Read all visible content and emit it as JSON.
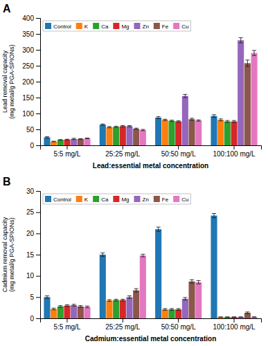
{
  "chart_data": [
    {
      "type": "bar",
      "title": "A",
      "xlabel": "Lead:essential metal concentration",
      "ylabel": "Lead removal capacity\n(mg metal/g PGA-SPIONs)",
      "categories": [
        "5:5 mg/L",
        "25:25 mg/L",
        "50:50 mg/L",
        "100:100 mg/L"
      ],
      "series": [
        {
          "name": "Control",
          "values": [
            25,
            65,
            87,
            92
          ],
          "errors": [
            2,
            2,
            3,
            4
          ]
        },
        {
          "name": "K",
          "values": [
            12,
            57,
            80,
            80
          ],
          "errors": [
            1,
            2,
            2,
            3
          ]
        },
        {
          "name": "Ca",
          "values": [
            17,
            58,
            77,
            75
          ],
          "errors": [
            1,
            2,
            2,
            3
          ]
        },
        {
          "name": "Mg",
          "values": [
            18,
            60,
            75,
            75
          ],
          "errors": [
            1,
            2,
            2,
            3
          ]
        },
        {
          "name": "Zn",
          "values": [
            20,
            60,
            155,
            330
          ],
          "errors": [
            2,
            2,
            5,
            8
          ]
        },
        {
          "name": "Fe",
          "values": [
            20,
            52,
            82,
            258
          ],
          "errors": [
            1,
            2,
            3,
            10
          ]
        },
        {
          "name": "Cu",
          "values": [
            22,
            48,
            78,
            290
          ],
          "errors": [
            1,
            2,
            2,
            8
          ]
        }
      ],
      "ylim": [
        0,
        400
      ],
      "yticks": [
        0,
        50,
        100,
        150,
        200,
        250,
        300,
        350,
        400
      ],
      "grid": false,
      "legend": "upper left"
    },
    {
      "type": "bar",
      "title": "B",
      "xlabel": "Cadmium:essential metal concentration",
      "ylabel": "Cadmium removal capacity\n(mg metal/g PGA-SPIONs)",
      "categories": [
        "5:5 mg/L",
        "25:25 mg/L",
        "50:50 mg/L",
        "100:100 mg/L"
      ],
      "series": [
        {
          "name": "Control",
          "values": [
            5.0,
            15.0,
            21.0,
            24.2
          ],
          "errors": [
            0.3,
            0.4,
            0.5,
            0.5
          ]
        },
        {
          "name": "K",
          "values": [
            2.2,
            4.2,
            2.1,
            0.3
          ],
          "errors": [
            0.2,
            0.2,
            0.2,
            0.05
          ]
        },
        {
          "name": "Ca",
          "values": [
            2.8,
            4.3,
            2.1,
            0.3
          ],
          "errors": [
            0.2,
            0.2,
            0.2,
            0.05
          ]
        },
        {
          "name": "Mg",
          "values": [
            3.0,
            4.3,
            2.1,
            0.3
          ],
          "errors": [
            0.2,
            0.2,
            0.2,
            0.05
          ]
        },
        {
          "name": "Zn",
          "values": [
            3.1,
            5.0,
            4.6,
            0.3
          ],
          "errors": [
            0.2,
            0.3,
            0.3,
            0.05
          ]
        },
        {
          "name": "Fe",
          "values": [
            2.8,
            6.6,
            8.7,
            1.3
          ],
          "errors": [
            0.2,
            0.4,
            0.4,
            0.2
          ]
        },
        {
          "name": "Cu",
          "values": [
            2.7,
            14.8,
            8.5,
            0.3
          ],
          "errors": [
            0.2,
            0.3,
            0.4,
            0.05
          ]
        }
      ],
      "ylim": [
        0,
        30
      ],
      "yticks": [
        0,
        5,
        10,
        15,
        20,
        25,
        30
      ],
      "grid": false,
      "legend": "upper left"
    }
  ]
}
